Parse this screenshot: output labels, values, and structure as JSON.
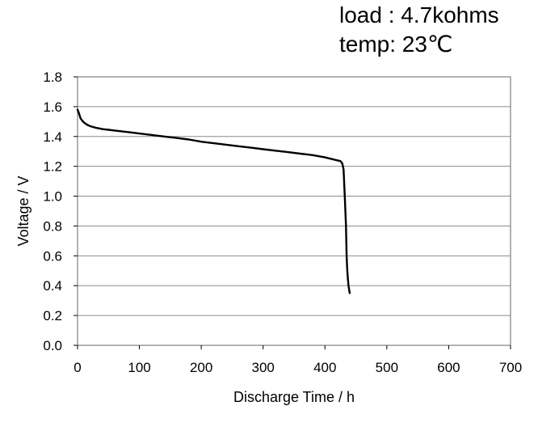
{
  "annotations": {
    "load": "load : 4.7kohms",
    "temp": "temp: 23℃"
  },
  "chart_data": {
    "type": "line",
    "title": "",
    "xlabel": "Discharge Time / h",
    "ylabel": "Voltage / V",
    "xlim": [
      0,
      700
    ],
    "ylim": [
      0.0,
      1.8
    ],
    "x_ticks": [
      "0",
      "100",
      "200",
      "300",
      "400",
      "500",
      "600",
      "700"
    ],
    "y_ticks": [
      "0.0",
      "0.2",
      "0.4",
      "0.6",
      "0.8",
      "1.0",
      "1.2",
      "1.4",
      "1.6",
      "1.8"
    ],
    "grid": "horizontal",
    "legend": "none",
    "line_color": "#000000",
    "series": [
      {
        "x": [
          0,
          2,
          5,
          10,
          15,
          20,
          30,
          40,
          50,
          60,
          80,
          100,
          120,
          140,
          160,
          180,
          200,
          220,
          240,
          260,
          280,
          300,
          320,
          340,
          360,
          380,
          400,
          410,
          420,
          425,
          428,
          430,
          432,
          434,
          435,
          436,
          437,
          438,
          440
        ],
        "y": [
          1.58,
          1.56,
          1.52,
          1.495,
          1.48,
          1.47,
          1.458,
          1.45,
          1.445,
          1.44,
          1.43,
          1.42,
          1.41,
          1.4,
          1.39,
          1.38,
          1.365,
          1.355,
          1.345,
          1.335,
          1.325,
          1.315,
          1.305,
          1.295,
          1.285,
          1.275,
          1.26,
          1.25,
          1.24,
          1.235,
          1.22,
          1.18,
          1.0,
          0.8,
          0.6,
          0.5,
          0.45,
          0.4,
          0.35
        ]
      }
    ]
  }
}
